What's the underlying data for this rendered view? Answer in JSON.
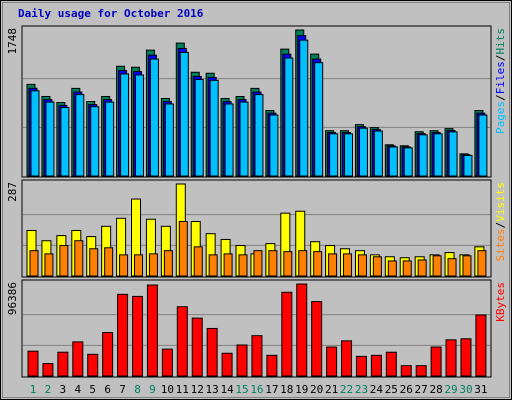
{
  "chart_data": [
    {
      "type": "bar",
      "title": "Daily usage for October 2016",
      "title_color": "#0000c0",
      "ylim": [
        0,
        1748
      ],
      "yticks": [
        1748
      ],
      "legend_separator": "/",
      "series": [
        {
          "name": "Hits",
          "color": "#00805c",
          "values": [
            1097,
            952,
            880,
            1049,
            892,
            952,
            1314,
            1302,
            1507,
            928,
            1591,
            1242,
            1230,
            928,
            952,
            1049,
            784,
            1519,
            1748,
            1459,
            542,
            542,
            615,
            579,
            374,
            362,
            530,
            542,
            567,
            265,
            784
          ]
        },
        {
          "name": "Files",
          "color": "#0000ff",
          "values": [
            1050,
            915,
            845,
            1005,
            855,
            915,
            1262,
            1250,
            1447,
            890,
            1527,
            1192,
            1180,
            890,
            915,
            1005,
            752,
            1458,
            1680,
            1400,
            520,
            520,
            590,
            556,
            360,
            348,
            508,
            520,
            545,
            254,
            752
          ]
        },
        {
          "name": "Pages",
          "color": "#00c0ff",
          "values": [
            1020,
            885,
            820,
            975,
            830,
            885,
            1222,
            1210,
            1400,
            862,
            1480,
            1155,
            1145,
            862,
            885,
            975,
            730,
            1412,
            1626,
            1357,
            505,
            505,
            572,
            538,
            348,
            337,
            493,
            505,
            528,
            246,
            730
          ]
        }
      ]
    },
    {
      "type": "bar",
      "ylim": [
        0,
        287
      ],
      "yticks": [
        287
      ],
      "legend_separator": "/",
      "series": [
        {
          "name": "Visits",
          "color": "#ffff00",
          "values": [
            142,
            110,
            126,
            142,
            123,
            155,
            180,
            240,
            177,
            155,
            287,
            170,
            132,
            114,
            95,
            69,
            101,
            196,
            202,
            107,
            95,
            85,
            79,
            66,
            60,
            57,
            60,
            66,
            73,
            66,
            91
          ]
        },
        {
          "name": "Sites",
          "color": "#ff8000",
          "values": [
            79,
            69,
            95,
            110,
            85,
            88,
            66,
            66,
            69,
            79,
            170,
            91,
            66,
            69,
            66,
            79,
            79,
            76,
            79,
            76,
            69,
            69,
            66,
            60,
            47,
            47,
            50,
            63,
            54,
            63,
            79
          ]
        }
      ]
    },
    {
      "type": "bar",
      "ylim": [
        0,
        96386
      ],
      "yticks": [
        96386
      ],
      "series": [
        {
          "name": "KBytes",
          "color": "#ff0000",
          "values": [
            25992,
            12996,
            24909,
            35739,
            22743,
            45486,
            85557,
            83391,
            95304,
            28158,
            72561,
            60648,
            49818,
            23826,
            32490,
            42237,
            21660,
            87723,
            96386,
            77976,
            30324,
            36822,
            20577,
            21660,
            24909,
            10830,
            10830,
            30324,
            37905,
            38988,
            63897
          ]
        }
      ],
      "categories": [
        "1",
        "2",
        "3",
        "4",
        "5",
        "6",
        "7",
        "8",
        "9",
        "10",
        "11",
        "12",
        "13",
        "14",
        "15",
        "16",
        "17",
        "18",
        "19",
        "20",
        "21",
        "22",
        "23",
        "24",
        "25",
        "26",
        "27",
        "28",
        "29",
        "30",
        "31"
      ],
      "category_colors": [
        "#00805c",
        "#00805c",
        "#000000",
        "#000000",
        "#000000",
        "#000000",
        "#000000",
        "#00805c",
        "#00805c",
        "#000000",
        "#000000",
        "#000000",
        "#000000",
        "#000000",
        "#00805c",
        "#00805c",
        "#000000",
        "#000000",
        "#000000",
        "#000000",
        "#000000",
        "#00805c",
        "#00805c",
        "#000000",
        "#000000",
        "#000000",
        "#000000",
        "#000000",
        "#00805c",
        "#00805c",
        "#000000"
      ]
    }
  ]
}
